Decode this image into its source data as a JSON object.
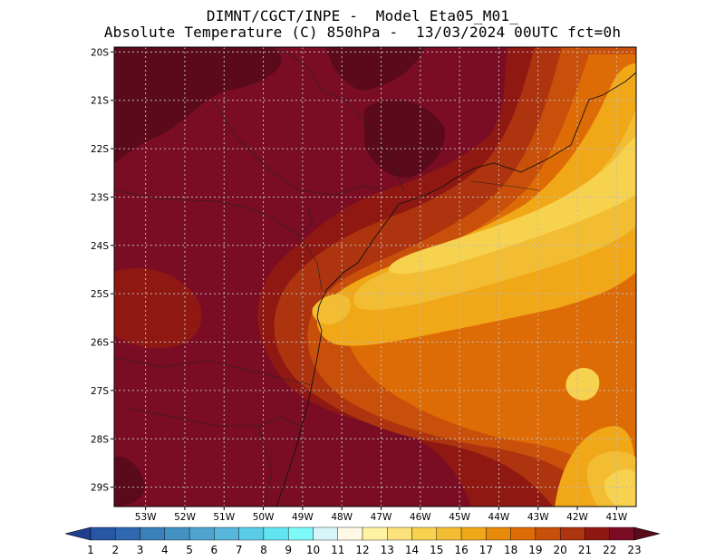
{
  "header": {
    "title_line1": "DIMNT/CGCT/INPE -  Model Eta05_M01_",
    "title_line2": "Absolute Temperature (C) 850hPa -  13/03/2024 00UTC fct=0h"
  },
  "map": {
    "lon_range": [
      -53.8,
      -40.5
    ],
    "lat_range": [
      -29.4,
      -19.9
    ],
    "lon_tick_labels": [
      "53W",
      "52W",
      "51W",
      "50W",
      "49W",
      "48W",
      "47W",
      "46W",
      "45W",
      "44W",
      "43W",
      "42W",
      "41W"
    ],
    "lat_tick_labels": [
      "20S",
      "21S",
      "22S",
      "23S",
      "24S",
      "25S",
      "26S",
      "27S",
      "28S",
      "29S"
    ],
    "grid": true,
    "grid_style": "dotted"
  },
  "colorbar": {
    "labels": [
      "1",
      "2",
      "3",
      "4",
      "5",
      "6",
      "7",
      "8",
      "9",
      "10",
      "11",
      "12",
      "13",
      "14",
      "15",
      "16",
      "17",
      "18",
      "19",
      "20",
      "21",
      "22",
      "23"
    ],
    "colors": [
      "#1f3e8e",
      "#2756a3",
      "#3068af",
      "#3a80b9",
      "#4492c4",
      "#4fa4cf",
      "#58b8dc",
      "#5acce8",
      "#62e4f2",
      "#7efafa",
      "#d8f6fa",
      "#fff9e6",
      "#fff2a0",
      "#fbe27c",
      "#f7d24e",
      "#f2bd33",
      "#f0a818",
      "#e88a0a",
      "#de6c06",
      "#c9500a",
      "#ad340e",
      "#8f1912",
      "#7a0d24",
      "#5a0a1a"
    ],
    "under_color": "#1f3e8e",
    "over_color": "#5a0a1a"
  }
}
